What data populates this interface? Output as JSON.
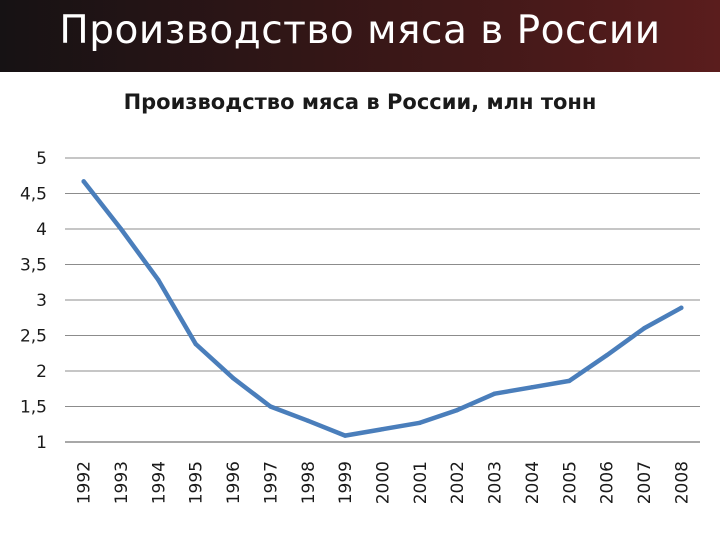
{
  "slide": {
    "title": "Производство мяса в России"
  },
  "colors": {
    "header_background": "#2a1515",
    "line": "#4a7ebb",
    "grid": "#8c8c8c"
  },
  "chart_data": {
    "type": "line",
    "title": "Производство мяса в России, млн тонн",
    "xlabel": "",
    "ylabel": "",
    "categories": [
      "1992",
      "1993",
      "1994",
      "1995",
      "1996",
      "1997",
      "1998",
      "1999",
      "2000",
      "2001",
      "2002",
      "2003",
      "2004",
      "2005",
      "2006",
      "2007",
      "2008"
    ],
    "series": [
      {
        "values": [
          4.67,
          4.0,
          3.28,
          2.38,
          1.9,
          1.5,
          1.3,
          1.09,
          1.18,
          1.27,
          1.45,
          1.68,
          1.77,
          1.86,
          2.22,
          2.6,
          2.89
        ]
      }
    ],
    "ylim": [
      1,
      5
    ],
    "yticks": [
      "1",
      "1,5",
      "2",
      "2,5",
      "3",
      "3,5",
      "4",
      "4,5",
      "5"
    ],
    "grid": true,
    "legend": "none"
  }
}
